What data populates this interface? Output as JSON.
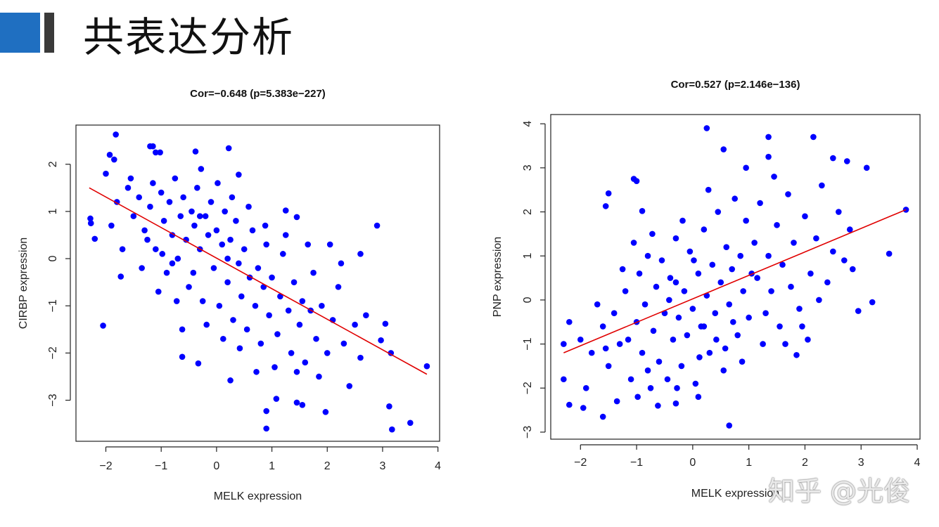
{
  "slide": {
    "title": "共表达分析",
    "watermark": "知乎 @光俊",
    "accent_color": "#1f6fc1"
  },
  "chart_data": [
    {
      "type": "scatter",
      "title": "Cor=−0.648 (p=5.383e−227)",
      "xlabel": "MELK expression",
      "ylabel": "CIRBP expression",
      "xlim": [
        -2.54,
        4.03
      ],
      "ylim": [
        -3.87,
        2.83
      ],
      "xticks": [
        -2,
        -1,
        0,
        1,
        2,
        3,
        4
      ],
      "xtick_labels": [
        "−2",
        "−1",
        "0",
        "1",
        "2",
        "3",
        "4"
      ],
      "yticks": [
        -3,
        -2,
        -1,
        0,
        1,
        2
      ],
      "ytick_labels": [
        "−3",
        "−2",
        "−1",
        "0",
        "1",
        "2"
      ],
      "grid": false,
      "point_color": "#0000ff",
      "fit_line": {
        "color": "#e00000",
        "x": [
          -2.3,
          3.8
        ],
        "y": [
          1.5,
          -2.45
        ]
      },
      "points": [
        [
          -1.82,
          2.63
        ],
        [
          -1.2,
          2.38
        ],
        [
          -1.15,
          2.38
        ],
        [
          -1.1,
          2.25
        ],
        [
          -1.02,
          2.25
        ],
        [
          0.22,
          2.34
        ],
        [
          -0.38,
          2.27
        ],
        [
          -1.93,
          2.2
        ],
        [
          -1.85,
          2.1
        ],
        [
          -2.28,
          0.85
        ],
        [
          -2.27,
          0.75
        ],
        [
          -2.2,
          0.42
        ],
        [
          -2.05,
          -1.42
        ],
        [
          -1.73,
          -0.38
        ],
        [
          -0.62,
          -2.08
        ],
        [
          -0.33,
          -2.22
        ],
        [
          0.25,
          -2.58
        ],
        [
          0.9,
          -3.6
        ],
        [
          0.9,
          -3.23
        ],
        [
          1.08,
          -2.97
        ],
        [
          1.97,
          -3.25
        ],
        [
          3.12,
          -3.13
        ],
        [
          3.17,
          -3.62
        ],
        [
          3.5,
          -3.48
        ],
        [
          3.8,
          -2.28
        ],
        [
          2.9,
          0.7
        ],
        [
          2.6,
          0.1
        ],
        [
          3.05,
          -1.38
        ],
        [
          3.15,
          -2.0
        ],
        [
          2.97,
          -1.73
        ],
        [
          1.45,
          0.88
        ],
        [
          1.25,
          1.02
        ],
        [
          0.4,
          1.78
        ],
        [
          1.55,
          -3.1
        ],
        [
          1.45,
          -3.05
        ],
        [
          -1.8,
          1.2
        ],
        [
          -1.6,
          1.5
        ],
        [
          -1.5,
          0.9
        ],
        [
          -1.4,
          1.3
        ],
        [
          -1.3,
          0.6
        ],
        [
          -1.2,
          1.1
        ],
        [
          -1.1,
          0.2
        ],
        [
          -1.0,
          1.4
        ],
        [
          -0.95,
          0.8
        ],
        [
          -0.9,
          -0.3
        ],
        [
          -0.85,
          1.2
        ],
        [
          -0.8,
          0.5
        ],
        [
          -0.75,
          1.7
        ],
        [
          -0.7,
          0.0
        ],
        [
          -0.65,
          0.9
        ],
        [
          -0.6,
          1.3
        ],
        [
          -0.55,
          0.4
        ],
        [
          -0.5,
          -0.6
        ],
        [
          -0.45,
          1.0
        ],
        [
          -0.4,
          0.7
        ],
        [
          -0.35,
          1.5
        ],
        [
          -0.3,
          0.2
        ],
        [
          -0.25,
          -0.9
        ],
        [
          -0.2,
          0.9
        ],
        [
          -0.15,
          0.5
        ],
        [
          -0.1,
          1.2
        ],
        [
          -0.05,
          -0.2
        ],
        [
          0.0,
          0.6
        ],
        [
          0.05,
          -1.0
        ],
        [
          0.1,
          0.3
        ],
        [
          0.15,
          1.0
        ],
        [
          0.2,
          -0.5
        ],
        [
          0.25,
          0.4
        ],
        [
          0.3,
          -1.3
        ],
        [
          0.35,
          0.8
        ],
        [
          0.4,
          -0.1
        ],
        [
          0.45,
          -0.8
        ],
        [
          0.5,
          0.2
        ],
        [
          0.55,
          -1.5
        ],
        [
          0.6,
          -0.4
        ],
        [
          0.65,
          0.6
        ],
        [
          0.7,
          -1.0
        ],
        [
          0.75,
          -0.2
        ],
        [
          0.8,
          -1.8
        ],
        [
          0.85,
          -0.6
        ],
        [
          0.9,
          0.3
        ],
        [
          0.95,
          -1.2
        ],
        [
          1.0,
          -0.4
        ],
        [
          1.1,
          -1.6
        ],
        [
          1.15,
          -0.8
        ],
        [
          1.2,
          0.1
        ],
        [
          1.3,
          -1.1
        ],
        [
          1.35,
          -2.0
        ],
        [
          1.4,
          -0.5
        ],
        [
          1.5,
          -1.4
        ],
        [
          1.55,
          -0.9
        ],
        [
          1.6,
          -2.2
        ],
        [
          1.7,
          -1.1
        ],
        [
          1.75,
          -0.3
        ],
        [
          1.8,
          -1.7
        ],
        [
          1.85,
          -2.5
        ],
        [
          1.9,
          -1.0
        ],
        [
          2.0,
          -2.0
        ],
        [
          2.1,
          -1.3
        ],
        [
          2.2,
          -0.6
        ],
        [
          2.3,
          -1.8
        ],
        [
          2.4,
          -2.7
        ],
        [
          2.5,
          -1.4
        ],
        [
          2.6,
          -2.1
        ],
        [
          2.7,
          -1.2
        ],
        [
          -2.0,
          1.8
        ],
        [
          -1.9,
          0.7
        ],
        [
          -1.7,
          0.2
        ],
        [
          -1.55,
          1.7
        ],
        [
          -1.35,
          -0.2
        ],
        [
          -1.25,
          0.4
        ],
        [
          -1.15,
          1.6
        ],
        [
          -1.05,
          -0.7
        ],
        [
          -0.98,
          0.1
        ],
        [
          -0.72,
          -0.9
        ],
        [
          -0.62,
          -1.5
        ],
        [
          -0.42,
          -0.3
        ],
        [
          -0.28,
          1.9
        ],
        [
          -0.18,
          -1.4
        ],
        [
          0.02,
          1.6
        ],
        [
          0.12,
          -1.7
        ],
        [
          0.28,
          1.3
        ],
        [
          0.42,
          -1.9
        ],
        [
          0.58,
          1.1
        ],
        [
          0.72,
          -2.4
        ],
        [
          0.88,
          0.7
        ],
        [
          1.05,
          -2.3
        ],
        [
          1.25,
          0.5
        ],
        [
          1.45,
          -2.4
        ],
        [
          1.65,
          0.3
        ],
        [
          2.05,
          0.3
        ],
        [
          2.25,
          -0.1
        ],
        [
          -0.8,
          -0.1
        ],
        [
          -0.3,
          0.9
        ],
        [
          0.2,
          0.0
        ]
      ]
    },
    {
      "type": "scatter",
      "title": "Cor=0.527 (p=2.146e−136)",
      "xlabel": "MELK expression",
      "ylabel": "PNP expression",
      "xlim": [
        -2.53,
        4.05
      ],
      "ylim": [
        -3.16,
        4.21
      ],
      "xticks": [
        -2,
        -1,
        0,
        1,
        2,
        3,
        4
      ],
      "xtick_labels": [
        "−2",
        "−1",
        "0",
        "1",
        "2",
        "3",
        "4"
      ],
      "yticks": [
        -3,
        -2,
        -1,
        0,
        1,
        2,
        3,
        4
      ],
      "ytick_labels": [
        "−3",
        "−2",
        "−1",
        "0",
        "1",
        "2",
        "3",
        "4"
      ],
      "grid": false,
      "point_color": "#0000ff",
      "fit_line": {
        "color": "#e00000",
        "x": [
          -2.3,
          3.8
        ],
        "y": [
          -1.2,
          2.05
        ]
      },
      "points": [
        [
          0.25,
          3.9
        ],
        [
          1.35,
          3.7
        ],
        [
          2.15,
          3.7
        ],
        [
          2.75,
          3.15
        ],
        [
          3.1,
          3.0
        ],
        [
          2.5,
          3.22
        ],
        [
          0.95,
          3.0
        ],
        [
          0.55,
          3.42
        ],
        [
          1.35,
          3.25
        ],
        [
          3.8,
          2.05
        ],
        [
          3.5,
          1.05
        ],
        [
          3.2,
          -0.05
        ],
        [
          0.65,
          -2.85
        ],
        [
          -2.3,
          -1.8
        ],
        [
          -2.2,
          -2.38
        ],
        [
          -1.95,
          -2.45
        ],
        [
          -1.6,
          -2.65
        ],
        [
          -1.05,
          2.75
        ],
        [
          -1.0,
          2.7
        ],
        [
          -1.5,
          2.42
        ],
        [
          -1.55,
          2.13
        ],
        [
          -2.3,
          -1.0
        ],
        [
          -2.2,
          -0.5
        ],
        [
          1.85,
          -1.25
        ],
        [
          1.95,
          -0.6
        ],
        [
          2.95,
          -0.25
        ],
        [
          2.85,
          0.7
        ],
        [
          -0.9,
          2.02
        ],
        [
          0.1,
          -2.2
        ],
        [
          -0.3,
          -2.35
        ],
        [
          -1.8,
          -1.2
        ],
        [
          -1.6,
          -0.6
        ],
        [
          -1.5,
          -1.5
        ],
        [
          -1.4,
          -0.3
        ],
        [
          -1.3,
          -1.0
        ],
        [
          -1.2,
          0.2
        ],
        [
          -1.1,
          -1.8
        ],
        [
          -1.0,
          -0.5
        ],
        [
          -0.95,
          0.6
        ],
        [
          -0.9,
          -1.2
        ],
        [
          -0.85,
          -0.1
        ],
        [
          -0.8,
          1.0
        ],
        [
          -0.75,
          -2.0
        ],
        [
          -0.7,
          -0.7
        ],
        [
          -0.65,
          0.3
        ],
        [
          -0.6,
          -1.4
        ],
        [
          -0.55,
          0.9
        ],
        [
          -0.5,
          -0.3
        ],
        [
          -0.45,
          -1.8
        ],
        [
          -0.4,
          0.5
        ],
        [
          -0.35,
          -0.9
        ],
        [
          -0.3,
          1.4
        ],
        [
          -0.25,
          -0.4
        ],
        [
          -0.2,
          -1.5
        ],
        [
          -0.15,
          0.2
        ],
        [
          -0.1,
          -0.8
        ],
        [
          -0.05,
          1.1
        ],
        [
          0.0,
          -0.2
        ],
        [
          0.05,
          -1.9
        ],
        [
          0.1,
          0.6
        ],
        [
          0.15,
          -0.6
        ],
        [
          0.2,
          1.6
        ],
        [
          0.25,
          0.1
        ],
        [
          0.3,
          -1.2
        ],
        [
          0.35,
          0.8
        ],
        [
          0.4,
          -0.3
        ],
        [
          0.45,
          2.0
        ],
        [
          0.5,
          0.4
        ],
        [
          0.55,
          -1.6
        ],
        [
          0.6,
          1.2
        ],
        [
          0.65,
          -0.1
        ],
        [
          0.7,
          0.7
        ],
        [
          0.75,
          2.3
        ],
        [
          0.8,
          -0.8
        ],
        [
          0.85,
          1.0
        ],
        [
          0.9,
          0.2
        ],
        [
          0.95,
          1.8
        ],
        [
          1.0,
          -0.4
        ],
        [
          1.1,
          1.3
        ],
        [
          1.15,
          0.5
        ],
        [
          1.2,
          2.2
        ],
        [
          1.3,
          -0.3
        ],
        [
          1.35,
          1.0
        ],
        [
          1.4,
          0.2
        ],
        [
          1.5,
          1.7
        ],
        [
          1.55,
          -0.6
        ],
        [
          1.6,
          0.8
        ],
        [
          1.7,
          2.4
        ],
        [
          1.75,
          0.3
        ],
        [
          1.8,
          1.3
        ],
        [
          1.9,
          -0.2
        ],
        [
          2.0,
          1.9
        ],
        [
          2.1,
          0.6
        ],
        [
          2.2,
          1.4
        ],
        [
          2.3,
          2.6
        ],
        [
          2.4,
          0.4
        ],
        [
          2.5,
          1.1
        ],
        [
          2.6,
          2.0
        ],
        [
          2.7,
          0.9
        ],
        [
          2.8,
          1.6
        ],
        [
          -2.0,
          -0.9
        ],
        [
          -1.9,
          -2.0
        ],
        [
          -1.7,
          -0.1
        ],
        [
          -1.55,
          -1.1
        ],
        [
          -1.35,
          -2.3
        ],
        [
          -1.25,
          0.7
        ],
        [
          -1.15,
          -0.9
        ],
        [
          -1.05,
          1.3
        ],
        [
          -0.98,
          -2.2
        ],
        [
          -0.72,
          1.5
        ],
        [
          -0.62,
          -2.4
        ],
        [
          -0.42,
          0.0
        ],
        [
          -0.28,
          -2.0
        ],
        [
          -0.18,
          1.8
        ],
        [
          0.02,
          0.9
        ],
        [
          0.12,
          -1.3
        ],
        [
          0.28,
          2.5
        ],
        [
          0.42,
          -0.9
        ],
        [
          0.58,
          -1.1
        ],
        [
          0.72,
          -0.5
        ],
        [
          0.88,
          -1.4
        ],
        [
          1.05,
          0.6
        ],
        [
          1.25,
          -1.0
        ],
        [
          1.45,
          2.8
        ],
        [
          1.65,
          -1.0
        ],
        [
          2.05,
          -0.9
        ],
        [
          2.25,
          0.0
        ],
        [
          -0.8,
          -1.6
        ],
        [
          -0.3,
          0.4
        ],
        [
          0.2,
          -0.6
        ]
      ]
    }
  ]
}
